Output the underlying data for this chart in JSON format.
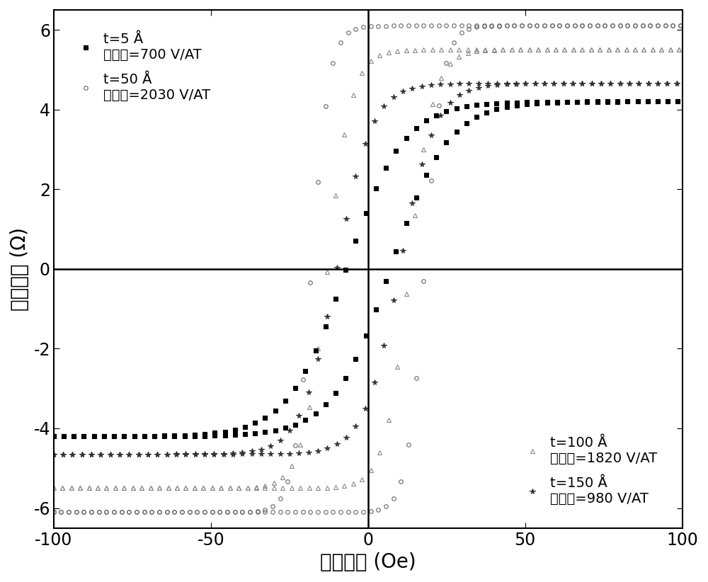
{
  "title": "",
  "xlabel": "外加磁场 (Oe)",
  "ylabel": "霍尔电阻 (Ω)",
  "xlim": [
    -100,
    100
  ],
  "ylim": [
    -6.5,
    6.5
  ],
  "yticks": [
    -6,
    -4,
    -2,
    0,
    2,
    4,
    6
  ],
  "xticks": [
    -100,
    -50,
    0,
    50,
    100
  ],
  "background_color": "#ffffff",
  "curves": [
    {
      "label_line1": "t=5 Å",
      "label_line2": "灵敏度=700 V/AT",
      "saturation": 4.2,
      "coercive": 7,
      "sharpness": 0.055,
      "color": "#000000",
      "marker": "s",
      "markersize": 4.5,
      "markerfacecolor": "#000000",
      "markeredgecolor": "#000000",
      "n_markers": 60,
      "zorder": 3
    },
    {
      "label_line1": "t=50 Å",
      "label_line2": "灵敏度=2030 V/AT",
      "saturation": 6.1,
      "coercive": 18,
      "sharpness": 0.18,
      "color": "#666666",
      "marker": "o",
      "markersize": 4.0,
      "markerfacecolor": "none",
      "markeredgecolor": "#666666",
      "n_markers": 80,
      "zorder": 2
    },
    {
      "label_line1": "t=100 Å",
      "label_line2": "灵敏度=1820 V/AT",
      "saturation": 5.5,
      "coercive": 13,
      "sharpness": 0.13,
      "color": "#888888",
      "marker": "^",
      "markersize": 4.5,
      "markerfacecolor": "none",
      "markeredgecolor": "#888888",
      "n_markers": 70,
      "zorder": 2
    },
    {
      "label_line1": "t=150 Å",
      "label_line2": "灵敏度=980 V/AT",
      "saturation": 4.65,
      "coercive": 10,
      "sharpness": 0.09,
      "color": "#333333",
      "marker": "*",
      "markersize": 5.5,
      "markerfacecolor": "#333333",
      "markeredgecolor": "#333333",
      "n_markers": 65,
      "zorder": 2
    }
  ],
  "legend1_indices": [
    0,
    1
  ],
  "legend2_indices": [
    2,
    3
  ],
  "fontsize_labels": 20,
  "fontsize_ticks": 17,
  "fontsize_legend": 14
}
